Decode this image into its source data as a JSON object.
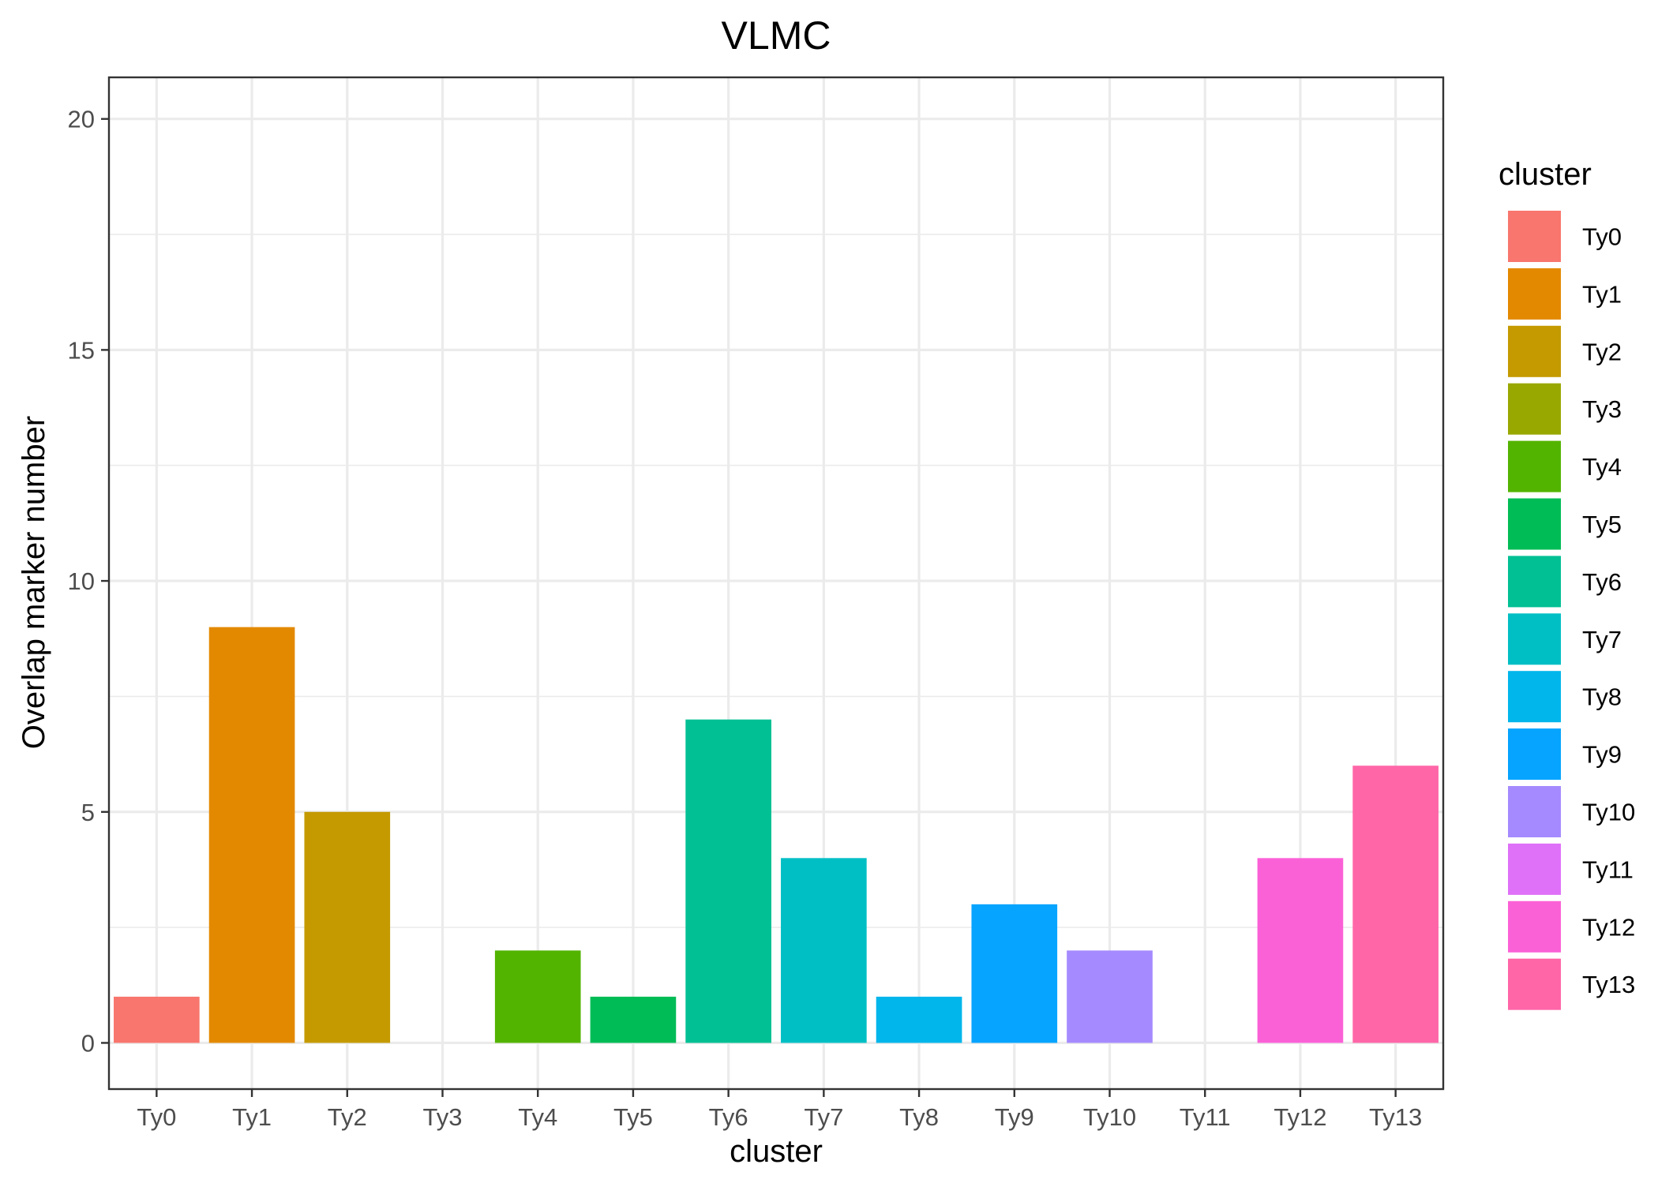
{
  "chart_data": {
    "type": "bar",
    "title": "VLMC",
    "xlabel": "cluster",
    "ylabel": "Overlap marker number",
    "categories": [
      "Ty0",
      "Ty1",
      "Ty2",
      "Ty3",
      "Ty4",
      "Ty5",
      "Ty6",
      "Ty7",
      "Ty8",
      "Ty9",
      "Ty10",
      "Ty11",
      "Ty12",
      "Ty13"
    ],
    "values": [
      1,
      9,
      5,
      0,
      2,
      1,
      7,
      4,
      1,
      3,
      2,
      0,
      4,
      6
    ],
    "colors": [
      "#F8766D",
      "#E38900",
      "#C49A00",
      "#99A800",
      "#53B400",
      "#00BC56",
      "#00C094",
      "#00BFC4",
      "#00B6EB",
      "#06A4FF",
      "#A58AFF",
      "#DF70F8",
      "#FB61D7",
      "#FF66A8"
    ],
    "ylim": [
      -1,
      20.9
    ],
    "yticks": [
      0,
      5,
      10,
      15,
      20
    ],
    "grid": true,
    "legend": {
      "title": "cluster",
      "position": "right",
      "items": [
        "Ty0",
        "Ty1",
        "Ty2",
        "Ty3",
        "Ty4",
        "Ty5",
        "Ty6",
        "Ty7",
        "Ty8",
        "Ty9",
        "Ty10",
        "Ty11",
        "Ty12",
        "Ty13"
      ]
    }
  }
}
